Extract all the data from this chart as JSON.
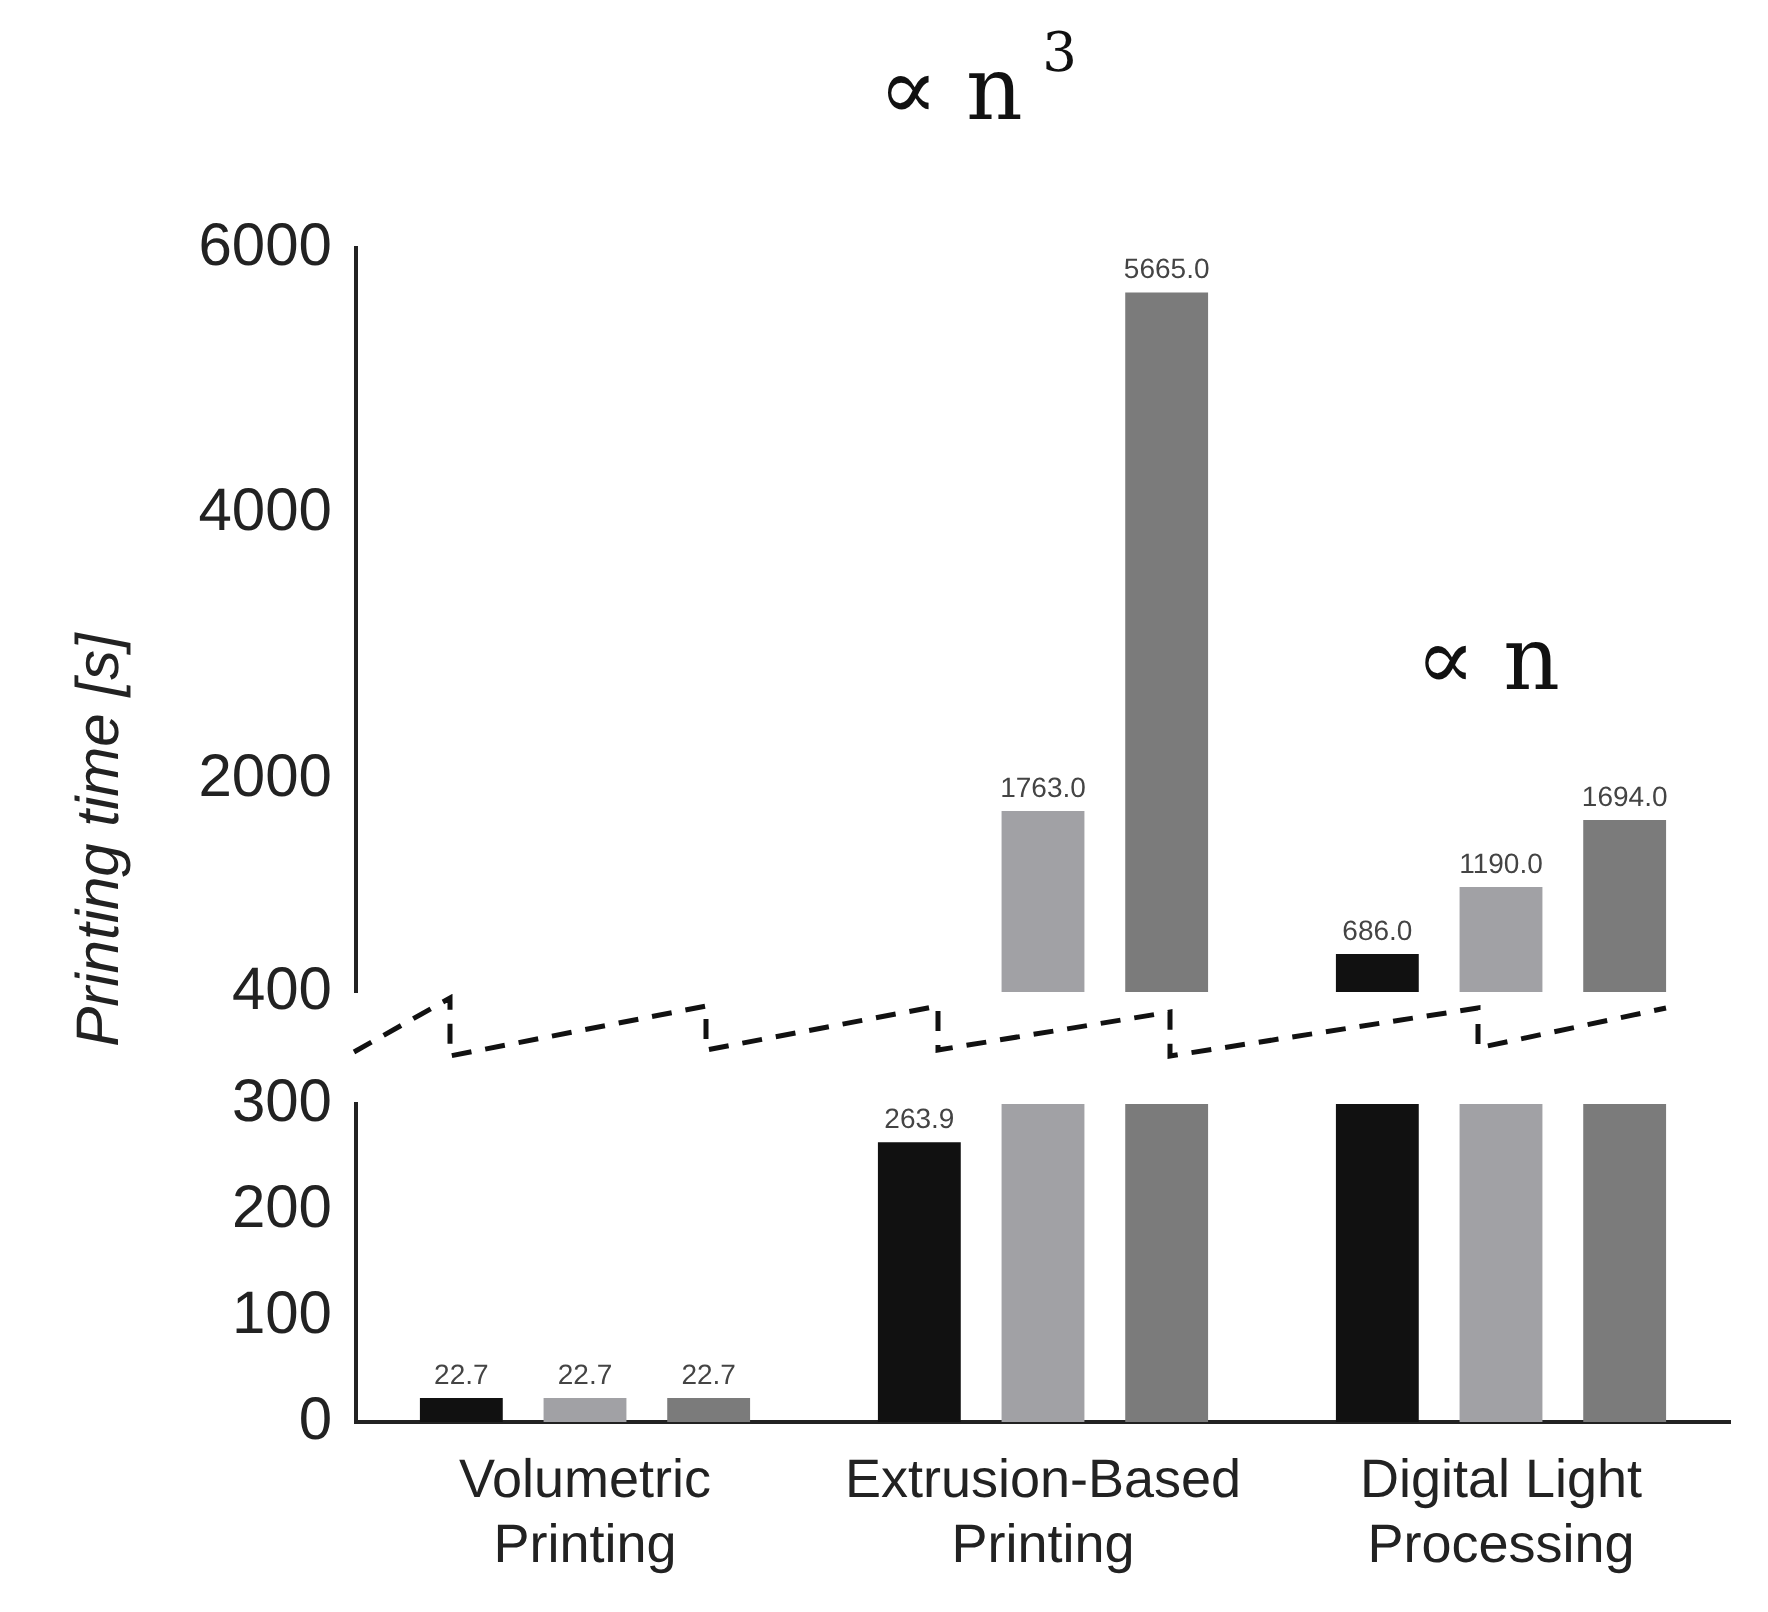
{
  "chart_data": [
    {
      "type": "bar",
      "ylabel": "Printing time [s]",
      "categories": [
        null,
        null,
        null
      ],
      "ylim": [
        400,
        6000
      ],
      "yticks": [
        400,
        2000,
        4000,
        6000
      ],
      "tick_labels": "y",
      "grid": false,
      "legend": false,
      "series": [
        {
          "color": "#111111",
          "values": [
            null,
            null,
            686
          ],
          "value_labels": [
            null,
            null,
            "686.0"
          ]
        },
        {
          "color": "#a1a1a5",
          "values": [
            null,
            1763,
            1190
          ],
          "value_labels": [
            null,
            "1763.0",
            "1190.0"
          ]
        },
        {
          "color": "#7b7b7b",
          "values": [
            null,
            5665,
            1694
          ],
          "value_labels": [
            null,
            "5665.0",
            "1694.0"
          ]
        }
      ],
      "annotations": [
        "∝ n$^{3}$",
        "∝ n"
      ]
    },
    {
      "type": "bar",
      "categories": [
        "Volumetric Printing",
        "Extrusion-Based Printing",
        "Digital Light Processing"
      ],
      "ylim": [
        0,
        300
      ],
      "yticks": [
        0,
        100,
        200,
        300
      ],
      "grid": false,
      "legend": false,
      "series": [
        {
          "color": "#111111",
          "values": [
            22.7,
            263.9,
            300
          ],
          "value_labels": [
            "22.7",
            "263.9",
            null
          ]
        },
        {
          "color": "#a1a1a5",
          "values": [
            22.7,
            300,
            300
          ],
          "value_labels": [
            "22.7",
            null,
            null
          ]
        },
        {
          "color": "#7b7b7b",
          "values": [
            22.7,
            300,
            300
          ],
          "value_labels": [
            "22.7",
            null,
            null
          ]
        }
      ]
    }
  ]
}
